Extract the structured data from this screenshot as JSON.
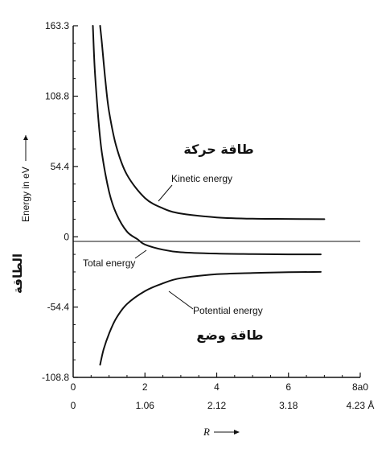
{
  "chart_data": {
    "type": "line",
    "title": "",
    "ylabel": "Energy in eV",
    "ylabel_arabic": "الطاقة",
    "xlabel": "R",
    "ylim": [
      -108.8,
      163.3
    ],
    "xlim": [
      0,
      8
    ],
    "grid": false,
    "y_ticks": [
      {
        "value": 163.3,
        "label": "163.3"
      },
      {
        "value": 108.8,
        "label": "108.8"
      },
      {
        "value": 54.4,
        "label": "54.4"
      },
      {
        "value": 0,
        "label": "0"
      },
      {
        "value": -54.4,
        "label": "-54.4"
      },
      {
        "value": -108.8,
        "label": "-108.8"
      }
    ],
    "x_ticks_top": [
      {
        "value": 0,
        "label": "0"
      },
      {
        "value": 2,
        "label": "2"
      },
      {
        "value": 4,
        "label": "4"
      },
      {
        "value": 6,
        "label": "6"
      },
      {
        "value": 8,
        "label": "8a0"
      }
    ],
    "x_ticks_bottom": [
      {
        "value": 0,
        "label": "0"
      },
      {
        "value": 2,
        "label": "1.06"
      },
      {
        "value": 4,
        "label": "2.12"
      },
      {
        "value": 6,
        "label": "3.18"
      },
      {
        "value": 8,
        "label": "4.23 Å"
      }
    ],
    "series": [
      {
        "name": "Kinetic energy",
        "x": [
          0.75,
          0.8,
          0.9,
          1.0,
          1.2,
          1.5,
          2.0,
          2.5,
          3.0,
          4.0,
          5.0,
          6.0,
          7.0
        ],
        "y": [
          163.3,
          150,
          120,
          97,
          70,
          48,
          30,
          22,
          18,
          15,
          14,
          13.8,
          13.6
        ]
      },
      {
        "name": "Total energy",
        "x": [
          0.55,
          0.6,
          0.7,
          0.8,
          1.0,
          1.2,
          1.5,
          1.8,
          2.0,
          2.5,
          3.0,
          4.0,
          5.0,
          6.0,
          6.9
        ],
        "y": [
          163.3,
          130,
          92,
          65,
          35,
          18,
          4,
          -2,
          -6,
          -10,
          -12,
          -13,
          -13.4,
          -13.6,
          -13.6
        ]
      },
      {
        "name": "Potential energy",
        "x": [
          0.75,
          0.85,
          1.0,
          1.2,
          1.5,
          2.0,
          2.5,
          3.0,
          4.0,
          5.0,
          6.0,
          6.9
        ],
        "y": [
          -99,
          -87,
          -75,
          -63,
          -52,
          -42,
          -36,
          -32,
          -29,
          -28,
          -27.4,
          -27.2
        ]
      }
    ],
    "annotations": [
      {
        "text": "Kinetic energy"
      },
      {
        "text": "Total energy"
      },
      {
        "text": "Potential energy"
      },
      {
        "text": "طاقة حركة"
      },
      {
        "text": "طاقة وضع"
      }
    ]
  }
}
